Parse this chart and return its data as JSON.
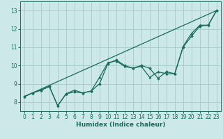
{
  "background_color": "#cce8e8",
  "grid_color": "#aacfcf",
  "line_color": "#1a6b5a",
  "xlabel": "Humidex (Indice chaleur)",
  "xlim": [
    -0.5,
    23.5
  ],
  "ylim": [
    7.5,
    13.5
  ],
  "yticks": [
    8,
    9,
    10,
    11,
    12,
    13
  ],
  "xticks": [
    0,
    1,
    2,
    3,
    4,
    5,
    6,
    7,
    8,
    9,
    10,
    11,
    12,
    13,
    14,
    15,
    16,
    17,
    18,
    19,
    20,
    21,
    22,
    23
  ],
  "line1_x": [
    0,
    23
  ],
  "line1_y": [
    8.3,
    13.0
  ],
  "line2_x": [
    0,
    1,
    2,
    3,
    4,
    5,
    6,
    7,
    8,
    9,
    10,
    11,
    12,
    13,
    14,
    15,
    16,
    17,
    18,
    19,
    20,
    21,
    22,
    23
  ],
  "line2_y": [
    8.3,
    8.5,
    8.65,
    8.85,
    7.8,
    8.45,
    8.65,
    8.5,
    8.6,
    9.35,
    10.15,
    10.25,
    9.95,
    9.85,
    9.95,
    9.35,
    9.65,
    9.55,
    9.55,
    11.05,
    11.75,
    12.2,
    12.2,
    13.0
  ],
  "line3_x": [
    0,
    1,
    2,
    3,
    4,
    5,
    6,
    7,
    8,
    9,
    10,
    11,
    12,
    13,
    14,
    15,
    16,
    17,
    18,
    19,
    20,
    21,
    22,
    23
  ],
  "line3_y": [
    8.3,
    8.5,
    8.65,
    8.85,
    7.8,
    8.45,
    8.55,
    8.5,
    8.6,
    9.0,
    10.1,
    10.3,
    10.0,
    9.85,
    10.0,
    9.85,
    9.3,
    9.65,
    9.55,
    11.0,
    11.6,
    12.15,
    12.2,
    13.0
  ]
}
